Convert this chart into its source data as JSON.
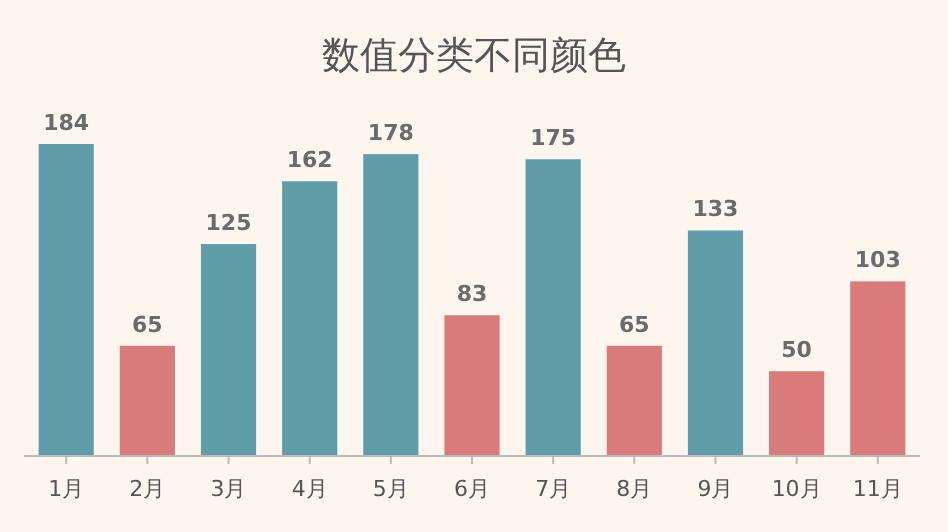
{
  "chart_data": {
    "type": "bar",
    "title": "数值分类不同颜色",
    "categories": [
      "1月",
      "2月",
      "3月",
      "4月",
      "5月",
      "6月",
      "7月",
      "8月",
      "9月",
      "10月",
      "11月"
    ],
    "values": [
      184,
      65,
      125,
      162,
      178,
      83,
      175,
      65,
      133,
      50,
      103
    ],
    "colors": [
      "#5f9ea9",
      "#d97b7b",
      "#5f9ea9",
      "#5f9ea9",
      "#5f9ea9",
      "#d97b7b",
      "#5f9ea9",
      "#d97b7b",
      "#5f9ea9",
      "#d97b7b",
      "#d97b7b"
    ],
    "data_labels": true
  }
}
